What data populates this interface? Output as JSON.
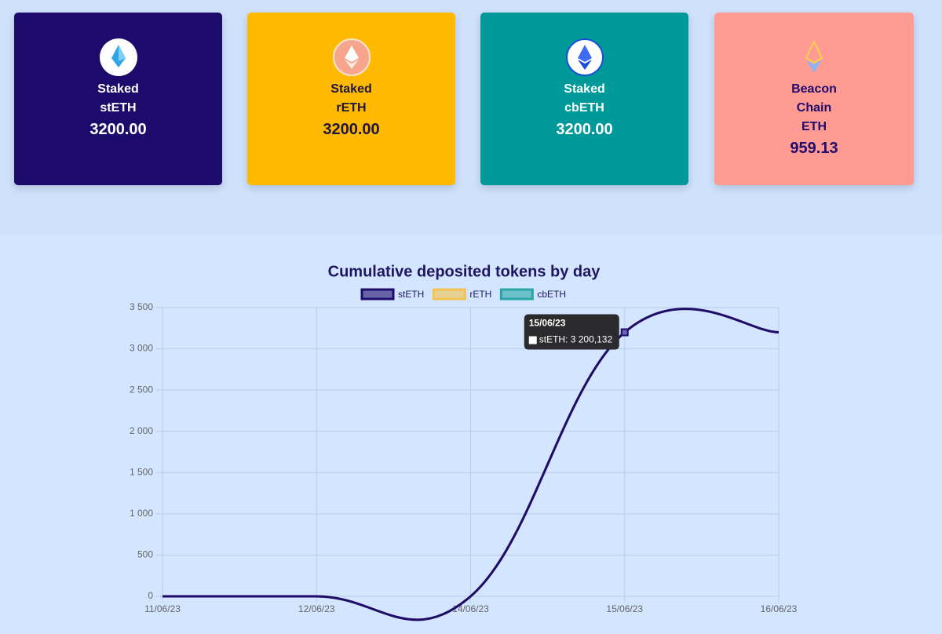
{
  "cards": [
    {
      "lines": [
        "Staked",
        "stETH"
      ],
      "value": "3200.00"
    },
    {
      "lines": [
        "Staked",
        "rETH"
      ],
      "value": "3200.00"
    },
    {
      "lines": [
        "Staked",
        "cbETH"
      ],
      "value": "3200.00"
    },
    {
      "lines": [
        "Beacon",
        "Chain",
        "ETH"
      ],
      "value": "959.13"
    }
  ],
  "chart_data": {
    "type": "line",
    "title": "Cumulative deposited tokens by day",
    "categories": [
      "11/06/23",
      "12/06/23",
      "14/06/23",
      "15/06/23",
      "16/06/23"
    ],
    "series": [
      {
        "name": "stETH",
        "color": "#1e0b6b",
        "values": [
          0,
          0,
          0,
          3200.132,
          3200
        ]
      },
      {
        "name": "rETH",
        "color": "#f4c34f",
        "values": [
          0,
          0,
          0,
          3200,
          3200
        ]
      },
      {
        "name": "cbETH",
        "color": "#2aa6a6",
        "values": [
          0,
          0,
          0,
          3200,
          3200
        ]
      }
    ],
    "ylim": [
      0,
      3500
    ],
    "yticks": [
      0,
      500,
      {
        "value": 1000,
        "label": "1 000"
      },
      {
        "value": 1500,
        "label": "1 500"
      },
      {
        "value": 2000,
        "label": "2 000"
      },
      {
        "value": 2500,
        "label": "2 500"
      },
      {
        "value": 3000,
        "label": "3 000"
      },
      {
        "value": 3500,
        "label": "3 500"
      }
    ],
    "grid": true,
    "legend": "top",
    "tooltip": {
      "title": "15/06/23",
      "label": "stETH: 3 200,132"
    }
  }
}
